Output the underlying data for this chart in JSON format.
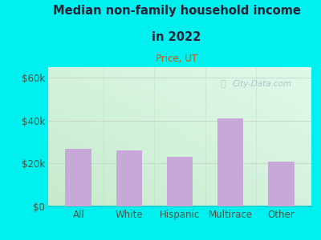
{
  "title_line1": "Median non-family household income",
  "title_line2": "in 2022",
  "subtitle": "Price, UT",
  "categories": [
    "All",
    "White",
    "Hispanic",
    "Multirace",
    "Other"
  ],
  "values": [
    27000,
    26000,
    23000,
    41000,
    21000
  ],
  "bar_color": "#c8a8d8",
  "yticks": [
    0,
    20000,
    40000,
    60000
  ],
  "ytick_labels": [
    "$0",
    "$20k",
    "$40k",
    "$60k"
  ],
  "ylim": [
    0,
    65000
  ],
  "bg_outer": "#00efef",
  "grid_line_color": "#c8d8c8",
  "title_color": "#222233",
  "subtitle_color": "#cc5500",
  "tick_color": "#445544",
  "watermark_text": "City-Data.com",
  "watermark_color": "#a8b8c0",
  "plot_bg_gradient_left": "#c8e8c8",
  "plot_bg_gradient_right": "#f0fff8"
}
